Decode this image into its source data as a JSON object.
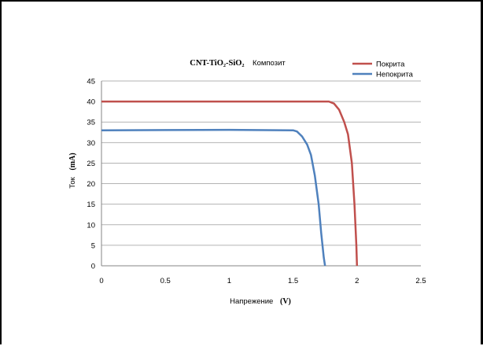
{
  "chart_data": {
    "type": "line",
    "title": {
      "main": "CNT-TiO₂-SiO₂",
      "sub": "Композит"
    },
    "xlabel": {
      "text": "Напрежение",
      "unit": "(V)"
    },
    "ylabel": {
      "text": "Ток",
      "unit": "(mA)"
    },
    "xlim": [
      0,
      2.5
    ],
    "ylim": [
      0,
      45
    ],
    "x_ticks": [
      {
        "value": 0,
        "label": "0"
      },
      {
        "value": 0.5,
        "label": "0.5"
      },
      {
        "value": 1,
        "label": "1"
      },
      {
        "value": 1.5,
        "label": "1.5"
      },
      {
        "value": 2,
        "label": "2"
      },
      {
        "value": 2.5,
        "label": "2.5"
      }
    ],
    "y_ticks": [
      {
        "value": 0,
        "label": "0"
      },
      {
        "value": 5,
        "label": "5"
      },
      {
        "value": 10,
        "label": "10"
      },
      {
        "value": 15,
        "label": "15"
      },
      {
        "value": 20,
        "label": "20"
      },
      {
        "value": 25,
        "label": "25"
      },
      {
        "value": 30,
        "label": "30"
      },
      {
        "value": 35,
        "label": "35"
      },
      {
        "value": 40,
        "label": "40"
      },
      {
        "value": 45,
        "label": "45"
      }
    ],
    "grid": "horizontal",
    "legend_position": "top-right",
    "series": [
      {
        "name": "Покрита",
        "color": "#c0504d",
        "points": [
          [
            0,
            40
          ],
          [
            0.5,
            40
          ],
          [
            1.0,
            40
          ],
          [
            1.5,
            40
          ],
          [
            1.78,
            40
          ],
          [
            1.82,
            39.5
          ],
          [
            1.86,
            38
          ],
          [
            1.9,
            35
          ],
          [
            1.93,
            32
          ],
          [
            1.96,
            25
          ],
          [
            1.98,
            15
          ],
          [
            1.995,
            5
          ],
          [
            2.0,
            0
          ]
        ]
      },
      {
        "name": "Непокрита",
        "color": "#4f81bd",
        "points": [
          [
            0,
            33
          ],
          [
            0.5,
            33.05
          ],
          [
            1.0,
            33.1
          ],
          [
            1.5,
            33
          ],
          [
            1.53,
            32.7
          ],
          [
            1.57,
            31.5
          ],
          [
            1.61,
            29.5
          ],
          [
            1.64,
            27
          ],
          [
            1.67,
            22
          ],
          [
            1.7,
            15
          ],
          [
            1.72,
            8
          ],
          [
            1.74,
            2
          ],
          [
            1.75,
            0
          ]
        ]
      }
    ]
  }
}
